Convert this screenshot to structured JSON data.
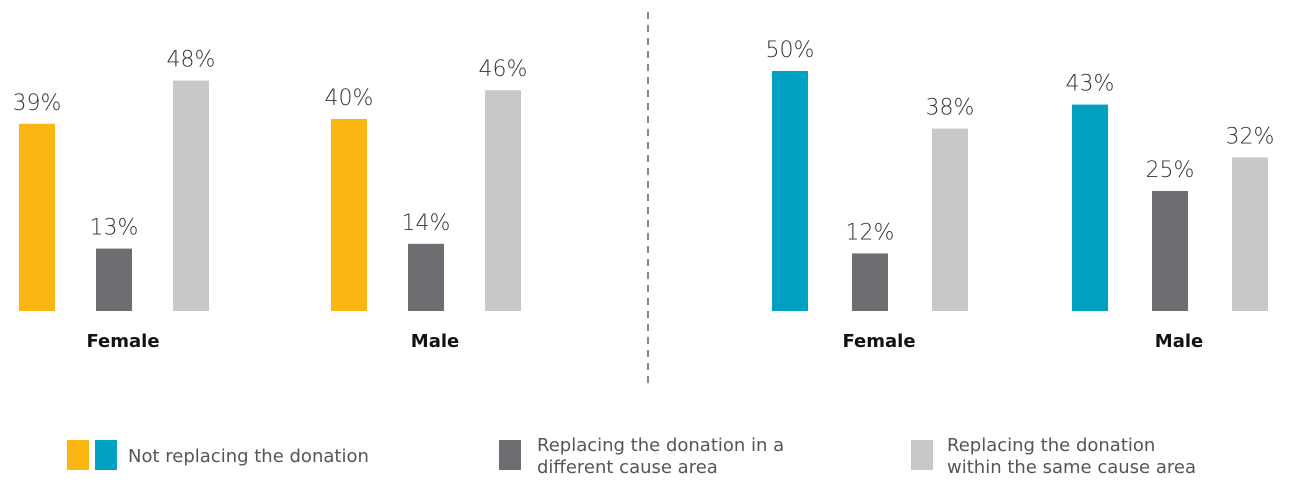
{
  "chart_data": [
    {
      "type": "bar",
      "categories": [
        "Female",
        "Male"
      ],
      "ylim": [
        0,
        50
      ],
      "series": [
        {
          "name": "Not replacing the donation",
          "color": "#fbb614",
          "values": [
            39,
            40
          ],
          "value_labels": [
            "39%",
            "40%"
          ]
        },
        {
          "name": "Replacing the donation in a different cause area",
          "color": "#6d6e71",
          "values": [
            13,
            14
          ],
          "value_labels": [
            "13%",
            "14%"
          ]
        },
        {
          "name": "Replacing the donation within the same cause area",
          "color": "#c7c8ca",
          "values": [
            48,
            46
          ],
          "value_labels": [
            "48%",
            "46%"
          ]
        }
      ]
    },
    {
      "type": "bar",
      "categories": [
        "Female",
        "Male"
      ],
      "ylim": [
        0,
        50
      ],
      "series": [
        {
          "color": "#00a0c1",
          "values": [
            50,
            43
          ],
          "value_labels": [
            "50%",
            "43%"
          ]
        },
        {
          "color": "#6d6e71",
          "values": [
            12,
            25
          ],
          "value_labels": [
            "12%",
            "25%"
          ]
        },
        {
          "color": "#c7c8ca",
          "values": [
            38,
            32
          ],
          "value_labels": [
            "38%",
            "32%"
          ]
        }
      ]
    }
  ]
}
